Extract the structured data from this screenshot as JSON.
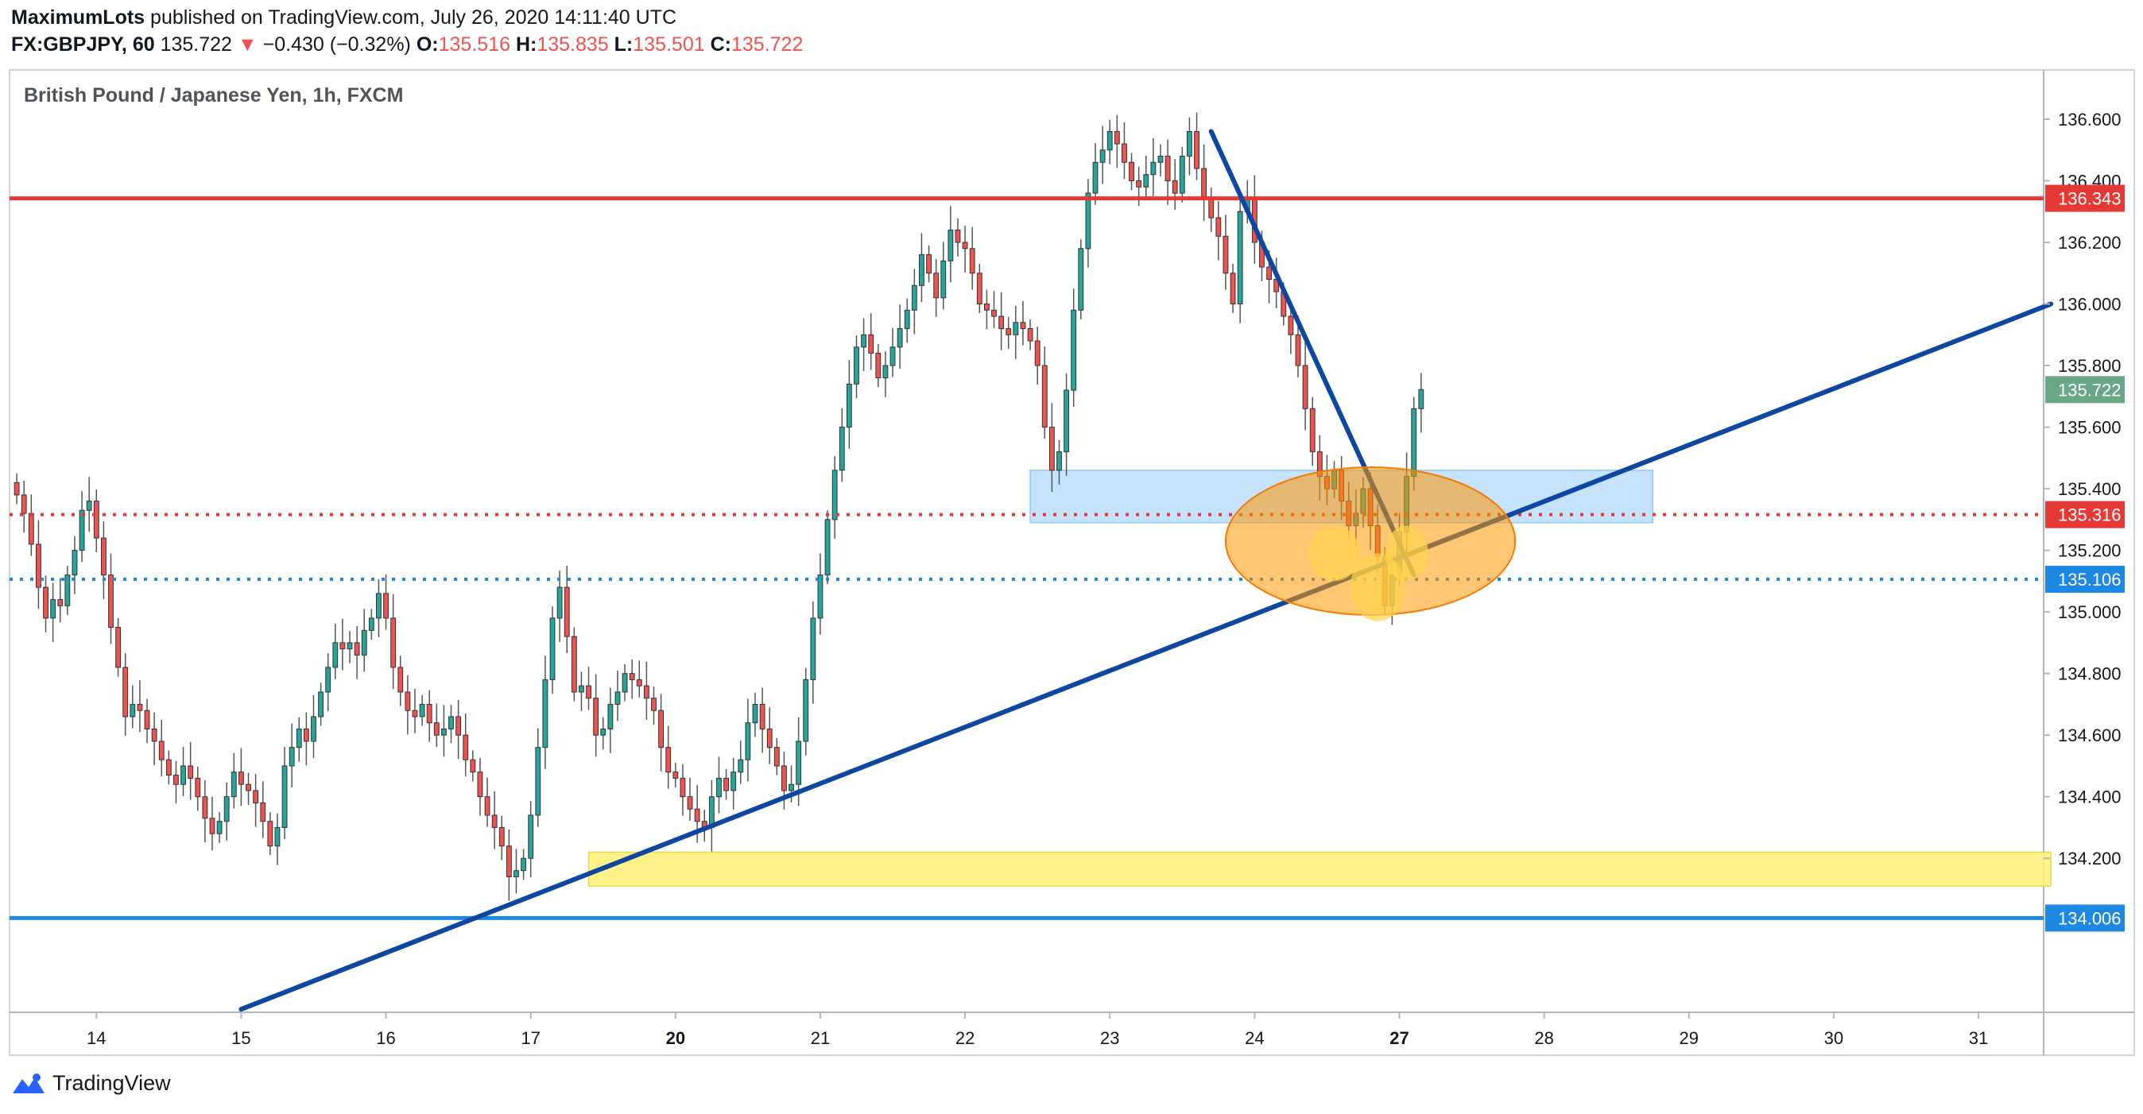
{
  "header": {
    "author": "MaximumLots",
    "published_text": "published on TradingView.com, July 26, 2020 14:11:40 UTC",
    "symbol": "FX:GBPJPY, 60",
    "last": "135.722",
    "change_arrow": "▼",
    "change": "−0.430 (−0.32%)",
    "o_label": "O:",
    "o": "135.516",
    "h_label": "H:",
    "h": "135.835",
    "l_label": "L:",
    "l": "135.501",
    "c_label": "C:",
    "c": "135.722"
  },
  "footer": {
    "brand": "TradingView",
    "logo_icon": "tradingview-logo-icon"
  },
  "colors": {
    "up": "#26a69a",
    "down": "#ef5350",
    "resistance": "#e53935",
    "support": "#1e88e5",
    "trend": "#0d47a1",
    "zone_yellow": "#fff176",
    "zone_blue": "#bbdefb",
    "ellipse": "#ff9800"
  },
  "chart_data": {
    "type": "candlestick",
    "title": "British Pound / Japanese Yen, 1h, FXCM",
    "ylim": [
      133.7,
      136.76
    ],
    "y_ticks": [
      "136.600",
      "136.400",
      "136.200",
      "136.000",
      "135.800",
      "135.600",
      "135.400",
      "135.200",
      "135.000",
      "134.800",
      "134.600",
      "134.400",
      "134.200"
    ],
    "x_ticks": [
      {
        "label": "14",
        "i": 11
      },
      {
        "label": "15",
        "i": 31
      },
      {
        "label": "16",
        "i": 51
      },
      {
        "label": "17",
        "i": 71
      },
      {
        "label": "20",
        "i": 91
      },
      {
        "label": "21",
        "i": 111
      },
      {
        "label": "22",
        "i": 131
      },
      {
        "label": "23",
        "i": 151
      },
      {
        "label": "24",
        "i": 171
      },
      {
        "label": "27",
        "i": 191
      },
      {
        "label": "28",
        "i": 211
      },
      {
        "label": "29",
        "i": 231
      },
      {
        "label": "30",
        "i": 251
      },
      {
        "label": "31",
        "i": 271
      }
    ],
    "x_range": [
      -1,
      280
    ],
    "price_labels": [
      {
        "value": 136.343,
        "label": "136.343",
        "color": "#e53935"
      },
      {
        "value": 135.722,
        "label": "135.722",
        "color": "#6aa786"
      },
      {
        "value": 135.316,
        "label": "135.316",
        "color": "#e53935"
      },
      {
        "value": 135.106,
        "label": "135.106",
        "color": "#1e88e5"
      },
      {
        "value": 134.006,
        "label": "134.006",
        "color": "#1e88e5"
      }
    ],
    "hlines": [
      {
        "value": 136.343,
        "style": "solid",
        "color": "#e53935"
      },
      {
        "value": 135.316,
        "style": "dotted",
        "color": "#e53935"
      },
      {
        "value": 135.106,
        "style": "dotted",
        "color": "#1e88e5"
      },
      {
        "value": 134.006,
        "style": "solid",
        "color": "#1e88e5"
      }
    ],
    "trendlines": [
      {
        "from": [
          31,
          133.71
        ],
        "to": [
          281,
          136.0
        ]
      },
      {
        "from": [
          165,
          136.56
        ],
        "to": [
          193,
          135.12
        ]
      }
    ],
    "zones": [
      {
        "x0": 140,
        "x1": 226,
        "y0": 135.29,
        "y1": 135.46,
        "color": "#bbdefb"
      },
      {
        "x0": 79,
        "x1": 281,
        "y0": 134.11,
        "y1": 134.22,
        "color": "#fff176"
      }
    ],
    "ellipses": [
      {
        "cx": 187,
        "cy": 135.23,
        "rx": 20,
        "ry": 0.24,
        "color": "#ff9800"
      },
      {
        "cx": 182,
        "cy": 135.19,
        "rx": 3.6,
        "ry": 0.09,
        "color": "#ffd54f"
      },
      {
        "cx": 188,
        "cy": 135.08,
        "rx": 3.8,
        "ry": 0.11,
        "color": "#ffd54f"
      },
      {
        "cx": 192,
        "cy": 135.19,
        "rx": 3,
        "ry": 0.09,
        "color": "#ffd54f"
      }
    ],
    "closes": [
      135.38,
      135.32,
      135.22,
      135.08,
      134.98,
      135.04,
      135.02,
      135.12,
      135.2,
      135.33,
      135.36,
      135.24,
      135.12,
      134.95,
      134.82,
      134.66,
      134.7,
      134.68,
      134.62,
      134.58,
      134.52,
      134.47,
      134.44,
      134.5,
      134.46,
      134.4,
      134.33,
      134.28,
      134.32,
      134.4,
      134.48,
      134.44,
      134.42,
      134.38,
      134.32,
      134.24,
      134.3,
      134.5,
      134.56,
      134.62,
      134.58,
      134.66,
      134.74,
      134.82,
      134.9,
      134.88,
      134.9,
      134.86,
      134.94,
      134.98,
      135.06,
      134.98,
      134.82,
      134.74,
      134.68,
      134.66,
      134.7,
      134.64,
      134.6,
      134.62,
      134.66,
      134.6,
      134.52,
      134.48,
      134.4,
      134.34,
      134.3,
      134.24,
      134.14,
      134.16,
      134.2,
      134.34,
      134.56,
      134.78,
      134.98,
      135.08,
      134.92,
      134.74,
      134.76,
      134.72,
      134.6,
      134.62,
      134.7,
      134.74,
      134.8,
      134.78,
      134.76,
      134.72,
      134.68,
      134.56,
      134.48,
      134.46,
      134.4,
      134.36,
      134.32,
      134.3,
      134.4,
      134.46,
      134.42,
      134.48,
      134.52,
      134.64,
      134.7,
      134.62,
      134.56,
      134.5,
      134.42,
      134.44,
      134.58,
      134.78,
      134.98,
      135.12,
      135.3,
      135.46,
      135.6,
      135.74,
      135.86,
      135.9,
      135.84,
      135.76,
      135.8,
      135.86,
      135.92,
      135.98,
      136.06,
      136.16,
      136.1,
      136.02,
      136.14,
      136.24,
      136.2,
      136.18,
      136.1,
      136.0,
      135.98,
      135.96,
      135.92,
      135.9,
      135.94,
      135.92,
      135.88,
      135.8,
      135.6,
      135.46,
      135.52,
      135.72,
      135.98,
      136.18,
      136.36,
      136.46,
      136.5,
      136.56,
      136.52,
      136.46,
      136.4,
      136.38,
      136.42,
      136.46,
      136.48,
      136.4,
      136.36,
      136.48,
      136.56,
      136.44,
      136.34,
      136.28,
      136.22,
      136.1,
      136.0,
      136.3,
      136.34,
      136.2,
      136.12,
      136.08,
      136.04,
      135.96,
      135.9,
      135.8,
      135.66,
      135.52,
      135.44,
      135.4,
      135.46,
      135.36,
      135.28,
      135.32,
      135.4,
      135.28,
      135.18,
      135.02,
      135.12,
      135.26,
      135.44,
      135.66,
      135.722
    ]
  }
}
